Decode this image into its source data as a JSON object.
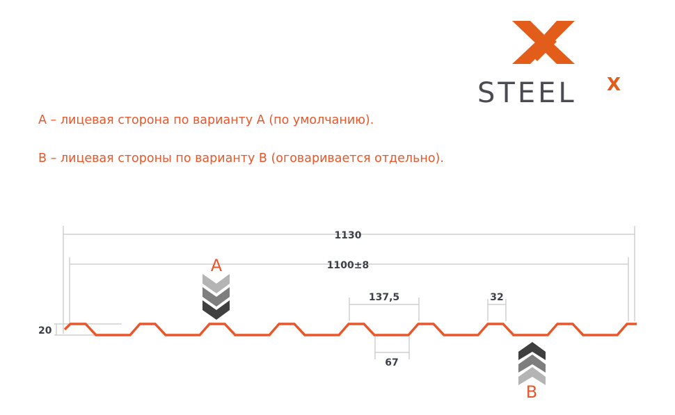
{
  "logo": {
    "text": "STEEL",
    "superscript": "X",
    "brand_color": "#e35d1a",
    "text_color": "#4a4c52"
  },
  "notes": [
    "А – лицевая сторона по варианту А (по умолчанию).",
    "В – лицевая стороны по варианту В (оговаривается отдельно)."
  ],
  "dimensions": {
    "total_width": "1130",
    "working_width": "1100±8",
    "pitch": "137,5",
    "top_width": "32",
    "bottom_width": "67",
    "height": "20"
  },
  "sides": {
    "a_label": "A",
    "b_label": "B"
  },
  "colors": {
    "profile": "#e8562a",
    "dimension_lines": "#c8c8c8",
    "accent_text": "#e8562a"
  }
}
